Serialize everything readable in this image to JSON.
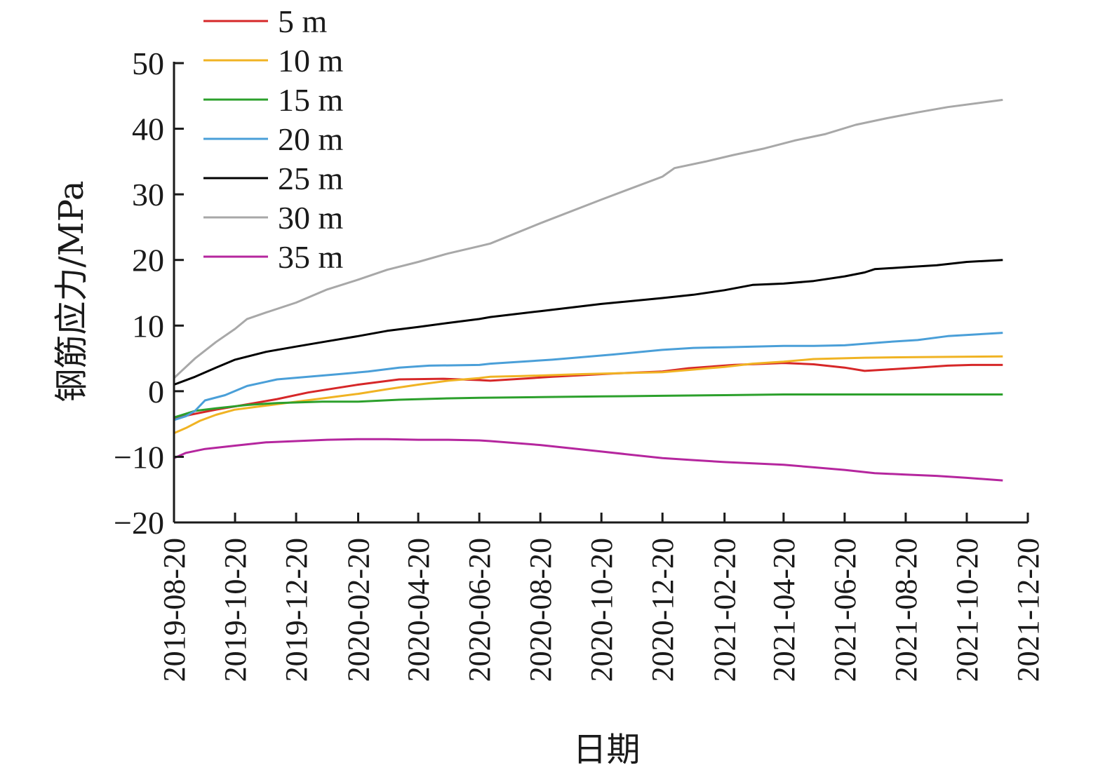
{
  "chart_data": {
    "type": "line",
    "title": "",
    "xlabel": "日期",
    "ylabel": "钢筋应力/MPa",
    "ylim": [
      -20,
      50
    ],
    "yticks": [
      -20,
      -10,
      0,
      10,
      20,
      30,
      40,
      50
    ],
    "ytick_labels": [
      "−20",
      "−10",
      "0",
      "10",
      "20",
      "30",
      "40",
      "50"
    ],
    "xlim": [
      "2019-08-20",
      "2021-12-20"
    ],
    "xticks": [
      "2019-08-20",
      "2019-10-20",
      "2019-12-20",
      "2020-02-20",
      "2020-04-20",
      "2020-06-20",
      "2020-08-20",
      "2020-10-20",
      "2020-12-20",
      "2021-02-20",
      "2021-04-20",
      "2021-06-20",
      "2021-08-20",
      "2021-10-20",
      "2021-12-20"
    ],
    "grid": false,
    "legend_position": "top-left",
    "series": [
      {
        "name": "5 m",
        "color": "#d62728",
        "x": [
          "2019-08-20",
          "2019-09-05",
          "2019-10-01",
          "2019-11-01",
          "2019-12-01",
          "2020-01-01",
          "2020-02-20",
          "2020-04-01",
          "2020-05-15",
          "2020-06-20",
          "2020-07-01",
          "2020-09-01",
          "2020-11-01",
          "2020-12-20",
          "2021-01-15",
          "2021-03-01",
          "2021-04-20",
          "2021-05-20",
          "2021-06-20",
          "2021-07-10",
          "2021-08-01",
          "2021-09-01",
          "2021-10-01",
          "2021-10-25",
          "2021-11-25"
        ],
        "y": [
          -4.2,
          -3.6,
          -2.8,
          -2.0,
          -1.2,
          -0.2,
          1.0,
          1.8,
          1.9,
          1.7,
          1.6,
          2.2,
          2.7,
          3.0,
          3.5,
          4.0,
          4.3,
          4.1,
          3.6,
          3.1,
          3.3,
          3.6,
          3.9,
          4.0,
          4.0
        ]
      },
      {
        "name": "10 m",
        "color": "#f0b323",
        "x": [
          "2019-08-20",
          "2019-09-01",
          "2019-09-15",
          "2019-10-01",
          "2019-10-20",
          "2019-11-20",
          "2019-12-20",
          "2020-01-20",
          "2020-02-20",
          "2020-03-20",
          "2020-04-20",
          "2020-05-20",
          "2020-06-20",
          "2020-07-01",
          "2020-08-01",
          "2020-10-01",
          "2020-12-20",
          "2021-01-20",
          "2021-02-20",
          "2021-03-20",
          "2021-04-20",
          "2021-05-20",
          "2021-07-10",
          "2021-09-01",
          "2021-11-25"
        ],
        "y": [
          -6.4,
          -5.6,
          -4.5,
          -3.6,
          -2.8,
          -2.2,
          -1.6,
          -1.0,
          -0.4,
          0.3,
          1.0,
          1.6,
          2.0,
          2.2,
          2.3,
          2.6,
          2.9,
          3.3,
          3.7,
          4.2,
          4.5,
          4.9,
          5.1,
          5.2,
          5.3
        ]
      },
      {
        "name": "15 m",
        "color": "#2ca02c",
        "x": [
          "2019-08-20",
          "2019-09-10",
          "2019-10-01",
          "2019-11-01",
          "2019-12-01",
          "2020-01-15",
          "2020-02-20",
          "2020-04-01",
          "2020-05-15",
          "2020-06-20",
          "2020-08-20",
          "2020-10-20",
          "2020-12-20",
          "2021-02-20",
          "2021-04-20",
          "2021-06-20",
          "2021-08-20",
          "2021-10-20",
          "2021-11-25"
        ],
        "y": [
          -4.0,
          -3.0,
          -2.6,
          -2.1,
          -1.8,
          -1.6,
          -1.6,
          -1.3,
          -1.1,
          -1.0,
          -0.9,
          -0.8,
          -0.7,
          -0.6,
          -0.5,
          -0.5,
          -0.5,
          -0.5,
          -0.5
        ]
      },
      {
        "name": "20 m",
        "color": "#4a9fd8",
        "x": [
          "2019-08-20",
          "2019-09-01",
          "2019-09-10",
          "2019-09-20",
          "2019-10-10",
          "2019-11-01",
          "2019-12-01",
          "2020-01-01",
          "2020-02-01",
          "2020-03-01",
          "2020-04-01",
          "2020-05-01",
          "2020-06-20",
          "2020-07-01",
          "2020-09-01",
          "2020-11-01",
          "2020-12-20",
          "2021-01-20",
          "2021-02-20",
          "2021-04-20",
          "2021-05-20",
          "2021-06-20",
          "2021-08-01",
          "2021-09-01",
          "2021-10-01",
          "2021-11-25"
        ],
        "y": [
          -4.4,
          -3.8,
          -3.0,
          -1.4,
          -0.6,
          0.8,
          1.8,
          2.2,
          2.6,
          3.0,
          3.6,
          3.9,
          4.0,
          4.2,
          4.8,
          5.6,
          6.3,
          6.6,
          6.7,
          6.9,
          6.9,
          7.0,
          7.5,
          7.8,
          8.4,
          8.9
        ]
      },
      {
        "name": "25 m",
        "color": "#000000",
        "x": [
          "2019-08-20",
          "2019-09-10",
          "2019-10-01",
          "2019-10-20",
          "2019-11-20",
          "2019-12-20",
          "2020-01-20",
          "2020-02-20",
          "2020-03-20",
          "2020-04-20",
          "2020-05-20",
          "2020-06-20",
          "2020-07-01",
          "2020-08-20",
          "2020-10-20",
          "2020-12-20",
          "2021-01-20",
          "2021-02-20",
          "2021-03-20",
          "2021-04-20",
          "2021-05-20",
          "2021-06-20",
          "2021-07-10",
          "2021-07-20",
          "2021-08-20",
          "2021-09-20",
          "2021-10-20",
          "2021-11-25"
        ],
        "y": [
          1.0,
          2.2,
          3.6,
          4.8,
          6.0,
          6.8,
          7.6,
          8.4,
          9.2,
          9.8,
          10.4,
          11.0,
          11.3,
          12.2,
          13.3,
          14.2,
          14.7,
          15.4,
          16.2,
          16.4,
          16.8,
          17.5,
          18.1,
          18.6,
          18.9,
          19.2,
          19.7,
          20.0
        ]
      },
      {
        "name": "30 m",
        "color": "#a8a8a8",
        "x": [
          "2019-08-20",
          "2019-09-10",
          "2019-10-01",
          "2019-10-20",
          "2019-11-01",
          "2019-11-20",
          "2019-12-20",
          "2020-01-20",
          "2020-02-20",
          "2020-03-20",
          "2020-04-20",
          "2020-05-20",
          "2020-06-20",
          "2020-07-01",
          "2020-08-20",
          "2020-10-20",
          "2020-12-20",
          "2021-01-01",
          "2021-02-01",
          "2021-03-01",
          "2021-04-01",
          "2021-05-01",
          "2021-06-01",
          "2021-07-01",
          "2021-08-01",
          "2021-09-01",
          "2021-10-01",
          "2021-11-25"
        ],
        "y": [
          2.0,
          5.0,
          7.5,
          9.5,
          11.0,
          12.0,
          13.5,
          15.5,
          17.0,
          18.5,
          19.7,
          21.0,
          22.1,
          22.5,
          25.6,
          29.2,
          32.7,
          34.0,
          35.0,
          36.0,
          37.0,
          38.2,
          39.2,
          40.6,
          41.6,
          42.5,
          43.3,
          44.4
        ]
      },
      {
        "name": "35 m",
        "color": "#b5269e",
        "x": [
          "2019-08-20",
          "2019-09-01",
          "2019-09-20",
          "2019-10-20",
          "2019-11-20",
          "2019-12-20",
          "2020-01-20",
          "2020-02-20",
          "2020-03-20",
          "2020-04-20",
          "2020-05-20",
          "2020-06-20",
          "2020-07-01",
          "2020-08-20",
          "2020-10-20",
          "2020-12-20",
          "2021-01-20",
          "2021-02-20",
          "2021-04-20",
          "2021-05-20",
          "2021-06-20",
          "2021-07-20",
          "2021-08-20",
          "2021-09-20",
          "2021-10-20",
          "2021-11-25"
        ],
        "y": [
          -10.2,
          -9.4,
          -8.8,
          -8.3,
          -7.8,
          -7.6,
          -7.4,
          -7.3,
          -7.3,
          -7.4,
          -7.4,
          -7.5,
          -7.6,
          -8.2,
          -9.2,
          -10.2,
          -10.5,
          -10.8,
          -11.2,
          -11.6,
          -12.0,
          -12.5,
          -12.7,
          -12.9,
          -13.2,
          -13.6
        ]
      }
    ]
  }
}
